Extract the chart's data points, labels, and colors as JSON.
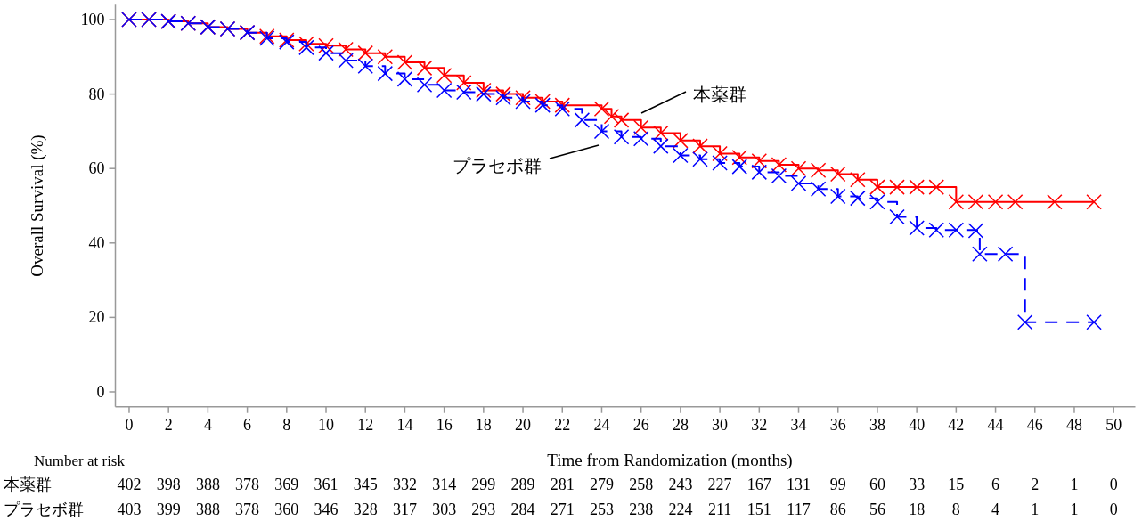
{
  "chart_data": [
    {
      "type": "step",
      "ylabel": "Overall Survival (%)",
      "xlabel": "Time from Randomization (months)",
      "xlim": [
        -0.7,
        51.1
      ],
      "ylim": [
        -4,
        104
      ],
      "xticks": [
        0,
        2,
        4,
        6,
        8,
        10,
        12,
        14,
        16,
        18,
        20,
        22,
        24,
        26,
        28,
        30,
        32,
        34,
        36,
        38,
        40,
        42,
        44,
        46,
        48,
        50
      ],
      "yticks": [
        0,
        20,
        40,
        60,
        80,
        100
      ],
      "marker": "cross",
      "grid": false,
      "series": [
        {
          "color": "#ff0000",
          "line_style": "solid",
          "x": [
            0,
            1,
            2,
            3,
            4,
            5,
            6,
            7,
            8,
            9,
            10,
            11,
            12,
            13,
            14,
            15,
            16,
            17,
            18,
            19,
            20,
            21,
            22,
            24,
            24.5,
            25,
            26,
            27,
            28,
            29,
            30,
            31,
            32,
            33,
            34,
            35,
            36,
            37,
            38,
            39,
            40,
            41,
            42,
            43,
            44,
            45,
            47,
            49
          ],
          "values": [
            100,
            100,
            99.5,
            99,
            98,
            97.5,
            96.5,
            95.5,
            94.5,
            93.5,
            93,
            92,
            91,
            90,
            88.5,
            87,
            85,
            83,
            81,
            80,
            79,
            78,
            77,
            76,
            74,
            73,
            71,
            69.5,
            67.5,
            66,
            64,
            63,
            62,
            61,
            60,
            59.5,
            58.5,
            57,
            55,
            55,
            55,
            55,
            51,
            51,
            51,
            51,
            51,
            51
          ]
        },
        {
          "color": "#0000ff",
          "line_style": "dashed",
          "x": [
            0,
            1,
            2,
            3,
            4,
            5,
            6,
            7,
            8,
            9,
            10,
            11,
            12,
            13,
            14,
            15,
            16,
            17,
            18,
            19,
            20,
            21,
            22,
            23,
            24,
            25,
            26,
            27,
            28,
            29,
            30,
            31,
            32,
            33,
            34,
            35,
            36,
            37,
            38,
            39,
            40,
            41,
            42,
            43,
            43.2,
            44.5,
            45.5,
            49
          ],
          "values": [
            100,
            100,
            99.5,
            99,
            98,
            97.5,
            96.5,
            95,
            94,
            92.5,
            91,
            89,
            87.5,
            85.5,
            84,
            82.5,
            81,
            80.5,
            80,
            79,
            78,
            77,
            76,
            73,
            70,
            68.5,
            68,
            66,
            63.5,
            62.5,
            61.5,
            60.5,
            59,
            58,
            56,
            54.5,
            52.5,
            52,
            51,
            47,
            44,
            43.5,
            43.5,
            43.3,
            37,
            37,
            18.7,
            18.7
          ]
        }
      ],
      "annotations": [
        "本薬群",
        "プラセボ群"
      ]
    },
    {
      "type": "heatmap",
      "title": "Number at risk",
      "data_labels": true,
      "categories": [
        null,
        null,
        null,
        null,
        null,
        null,
        null,
        null,
        null,
        null,
        null,
        null,
        null,
        null,
        null,
        null,
        null,
        null,
        null,
        null,
        null,
        null,
        null,
        null,
        null,
        null
      ],
      "y_categories": [
        "本薬群",
        "プラセボ群"
      ],
      "cells": [
        [
          402,
          398,
          388,
          378,
          369,
          361,
          345,
          332,
          314,
          299,
          289,
          281,
          279,
          258,
          243,
          227,
          167,
          131,
          99,
          60,
          33,
          15,
          6,
          2,
          1,
          0
        ],
        [
          403,
          399,
          388,
          378,
          360,
          346,
          328,
          317,
          303,
          293,
          284,
          271,
          253,
          238,
          224,
          211,
          151,
          117,
          86,
          56,
          18,
          8,
          4,
          1,
          1,
          0
        ]
      ]
    }
  ]
}
